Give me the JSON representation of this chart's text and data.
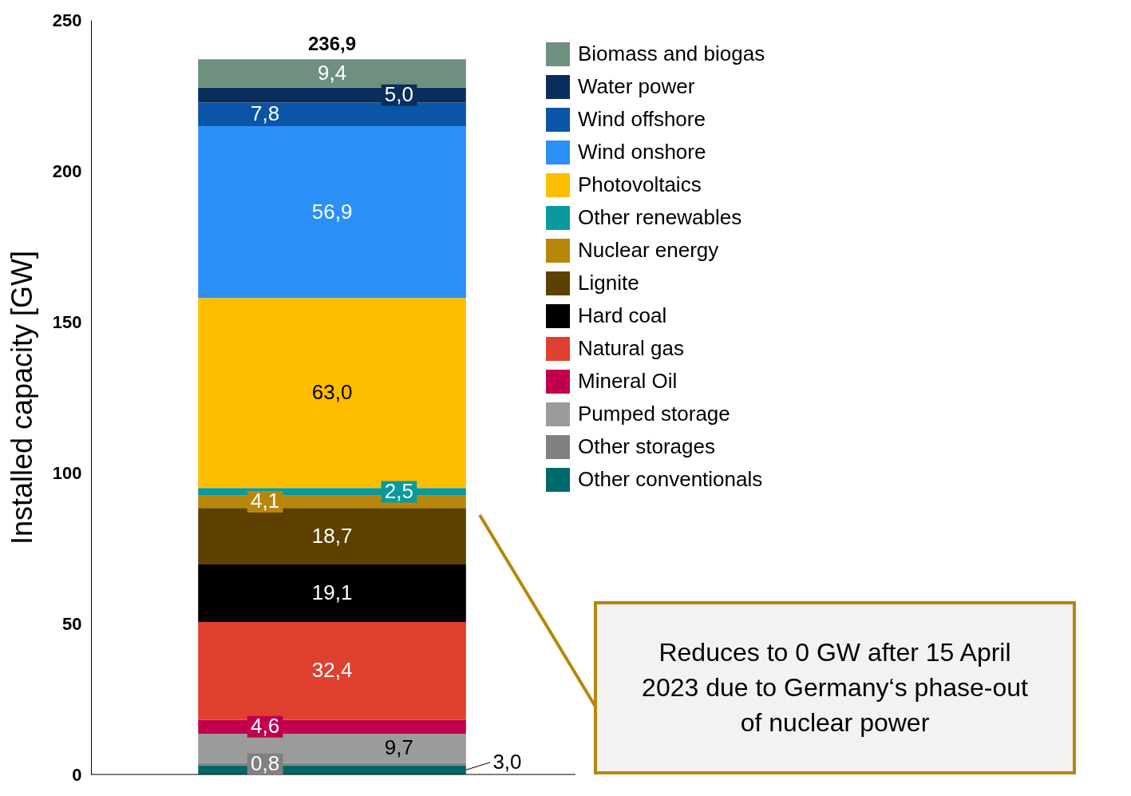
{
  "chart_data": {
    "type": "bar",
    "stacked": true,
    "categories": [
      null
    ],
    "ylabel": "Installed capacity [GW]",
    "ylim": [
      0,
      250
    ],
    "yticks": [
      0,
      50,
      100,
      150,
      200,
      250
    ],
    "grid": false,
    "legend": "top right",
    "series": [
      {
        "name": "Other conventionals",
        "color": "#00696b",
        "values": [
          3.0
        ],
        "value_labels": [
          "3,0"
        ]
      },
      {
        "name": "Other storages",
        "color": "#808080",
        "values": [
          0.8
        ],
        "value_labels": [
          "0,8"
        ]
      },
      {
        "name": "Pumped storage",
        "color": "#9b9b9b",
        "values": [
          9.7
        ],
        "value_labels": [
          "9,7"
        ]
      },
      {
        "name": "Mineral Oil",
        "color": "#c0004f",
        "values": [
          4.6
        ],
        "value_labels": [
          "4,6"
        ]
      },
      {
        "name": "Natural gas",
        "color": "#e0402f",
        "values": [
          32.4
        ],
        "value_labels": [
          "32,4"
        ]
      },
      {
        "name": "Hard coal",
        "color": "#000000",
        "values": [
          19.1
        ],
        "value_labels": [
          "19,1"
        ]
      },
      {
        "name": "Lignite",
        "color": "#5e4100",
        "values": [
          18.7
        ],
        "value_labels": [
          "18,7"
        ]
      },
      {
        "name": "Nuclear energy",
        "color": "#b8860b",
        "values": [
          4.1
        ],
        "value_labels": [
          "4,1"
        ]
      },
      {
        "name": "Other renewables",
        "color": "#0a9a9e",
        "values": [
          2.5
        ],
        "value_labels": [
          "2,5"
        ]
      },
      {
        "name": "Photovoltaics",
        "color": "#fdbe00",
        "values": [
          63.0
        ],
        "value_labels": [
          "63,0"
        ]
      },
      {
        "name": "Wind onshore",
        "color": "#2b8ff8",
        "values": [
          56.9
        ],
        "value_labels": [
          "56,9"
        ]
      },
      {
        "name": "Wind offshore",
        "color": "#0a55a8",
        "values": [
          7.8
        ],
        "value_labels": [
          "7,8"
        ]
      },
      {
        "name": "Water power",
        "color": "#0a2e5c",
        "values": [
          5.0
        ],
        "value_labels": [
          "5,0"
        ]
      },
      {
        "name": "Biomass and biogas",
        "color": "#6f8f7f",
        "values": [
          9.4
        ],
        "value_labels": [
          "9,4"
        ]
      }
    ],
    "totals": [
      "236,9"
    ],
    "annotations": [
      "Reduces to 0 GW after 15 April 2023 due to Germany‘s phase-out of nuclear power"
    ]
  }
}
